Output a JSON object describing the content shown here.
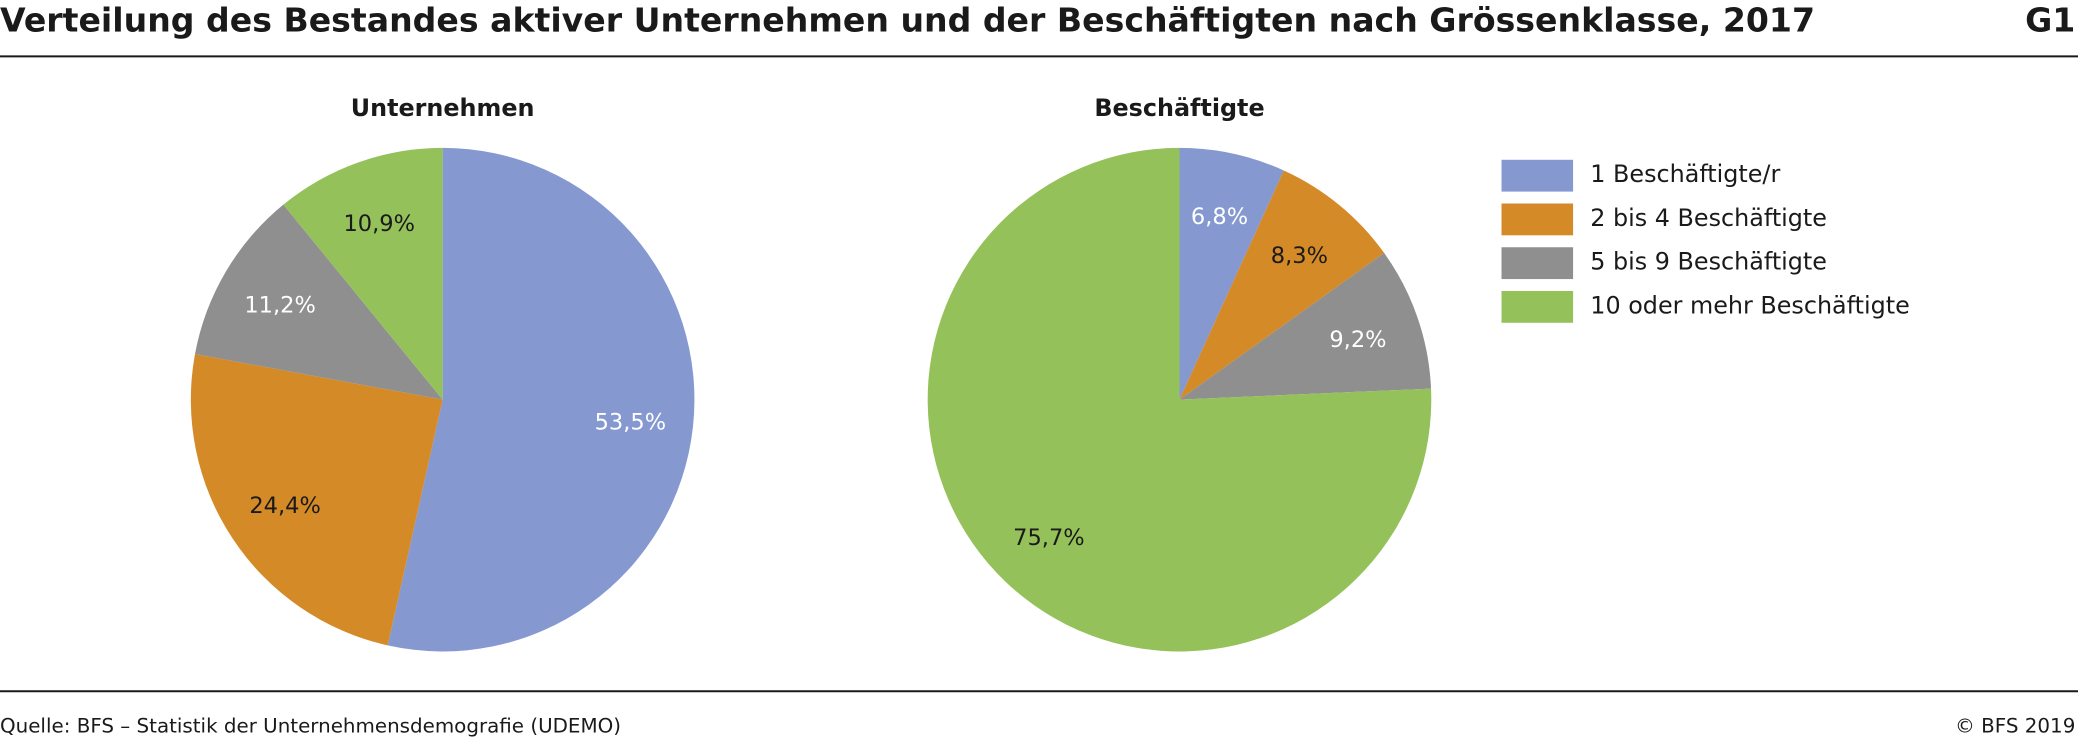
{
  "header": {
    "title": "Verteilung des Bestandes aktiver Unternehmen und der Beschäftigten nach Grössenklasse, 2017",
    "code": "G1"
  },
  "legend": {
    "position": "right",
    "items": [
      {
        "name": "1 Beschäftigte/r",
        "color": "#8598d0"
      },
      {
        "name": "2 bis 4 Beschäftigte",
        "color": "#d48a27"
      },
      {
        "name": "5 bis 9 Beschäftigte",
        "color": "#8f8f8f"
      },
      {
        "name": "10 oder mehr Beschäftigte",
        "color": "#95c15a"
      }
    ]
  },
  "chart_data": [
    {
      "type": "pie",
      "title": "Unternehmen",
      "values": [
        53.5,
        24.4,
        11.2,
        10.9
      ],
      "value_labels": [
        "53,5%",
        "24,4%",
        "11,2%",
        "10,9%"
      ]
    },
    {
      "type": "pie",
      "title": "Beschäftigte",
      "values": [
        6.8,
        8.3,
        9.2,
        75.7
      ],
      "value_labels": [
        "6,8%",
        "8,3%",
        "9,2%",
        "75,7%"
      ]
    }
  ],
  "footer": {
    "source": "Quelle: BFS – Statistik der Unternehmensdemografie (UDEMO)",
    "copyright": "© BFS 2019"
  }
}
